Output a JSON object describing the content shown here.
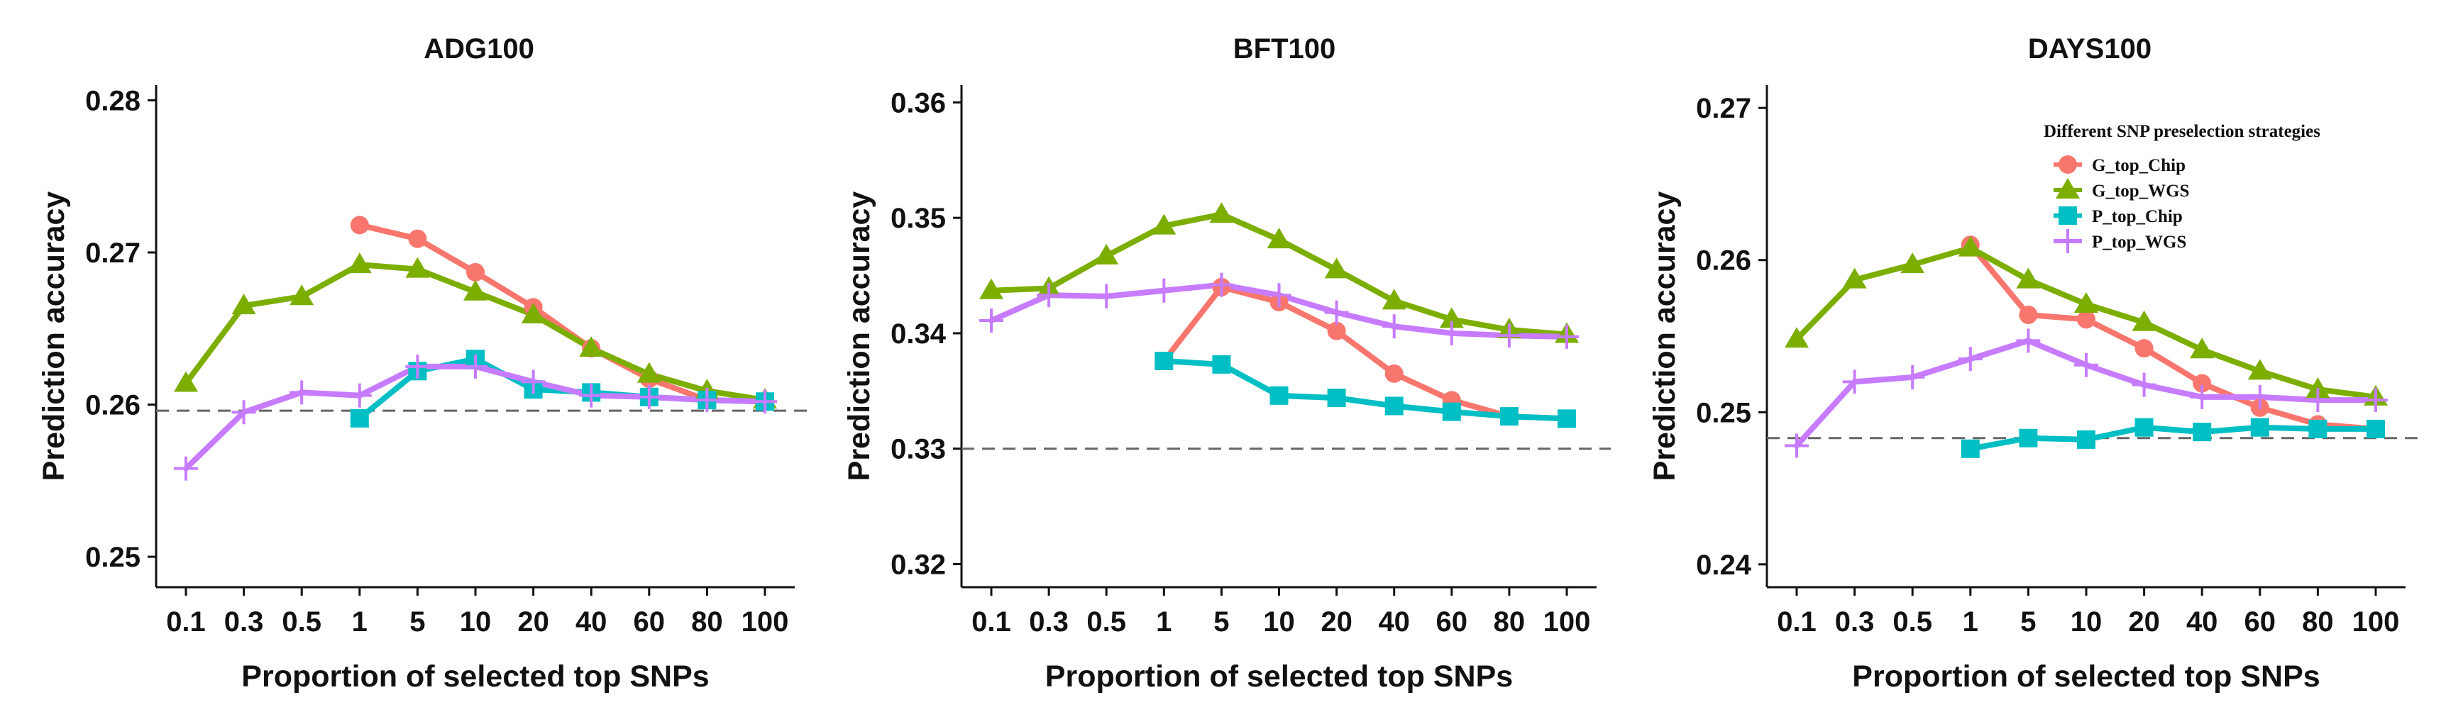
{
  "chart_data": [
    {
      "type": "line",
      "title": "ADG100",
      "xlabel": "Proportion of selected top SNPs",
      "ylabel": "Prediction accuracy",
      "categories": [
        "0.1",
        "0.3",
        "0.5",
        "1",
        "5",
        "10",
        "20",
        "40",
        "60",
        "80",
        "100"
      ],
      "ylim": [
        0.248,
        0.281
      ],
      "yticks": [
        0.25,
        0.26,
        0.27,
        0.28
      ],
      "ytick_labels": [
        "0.25",
        "0.26",
        "0.27",
        "0.28"
      ],
      "baseline": 0.2596,
      "series": [
        {
          "name": "G_top_Chip",
          "values": [
            null,
            null,
            null,
            0.2718,
            0.2709,
            0.2687,
            0.2664,
            0.2637,
            0.2617,
            0.2603,
            0.2602
          ]
        },
        {
          "name": "G_top_WGS",
          "values": [
            0.2614,
            0.2665,
            0.2671,
            0.2692,
            0.2689,
            0.2674,
            0.2659,
            0.2637,
            0.262,
            0.2609,
            0.2603
          ]
        },
        {
          "name": "P_top_Chip",
          "values": [
            null,
            null,
            null,
            0.2591,
            0.2622,
            0.263,
            0.261,
            0.2608,
            0.2605,
            0.2603,
            0.2602
          ]
        },
        {
          "name": "P_top_WGS",
          "values": [
            0.2558,
            0.2595,
            0.2608,
            0.2606,
            0.2625,
            0.2625,
            0.2615,
            0.2606,
            0.2605,
            0.2603,
            0.2602
          ]
        }
      ]
    },
    {
      "type": "line",
      "title": "BFT100",
      "xlabel": "Proportion of selected top SNPs",
      "ylabel": "Prediction accuracy",
      "categories": [
        "0.1",
        "0.3",
        "0.5",
        "1",
        "5",
        "10",
        "20",
        "40",
        "60",
        "80",
        "100"
      ],
      "ylim": [
        0.318,
        0.3615
      ],
      "yticks": [
        0.32,
        0.33,
        0.34,
        0.35,
        0.36
      ],
      "ytick_labels": [
        "0.32",
        "0.33",
        "0.34",
        "0.35",
        "0.36"
      ],
      "baseline": 0.33,
      "series": [
        {
          "name": "G_top_Chip",
          "values": [
            null,
            null,
            null,
            0.3376,
            0.344,
            0.3427,
            0.3402,
            0.3365,
            0.3342,
            0.3328,
            0.3326
          ]
        },
        {
          "name": "G_top_WGS",
          "values": [
            0.3437,
            0.3439,
            0.3467,
            0.3493,
            0.3503,
            0.3481,
            0.3455,
            0.3428,
            0.3412,
            0.3403,
            0.3399
          ]
        },
        {
          "name": "P_top_Chip",
          "values": [
            null,
            null,
            null,
            0.3376,
            0.3373,
            0.3346,
            0.3344,
            0.3337,
            0.3332,
            0.3328,
            0.3326
          ]
        },
        {
          "name": "P_top_WGS",
          "values": [
            0.3411,
            0.3433,
            0.3432,
            0.3437,
            0.3442,
            0.3433,
            0.3418,
            0.3406,
            0.34,
            0.3398,
            0.3397
          ]
        }
      ]
    },
    {
      "type": "line",
      "title": "DAYS100",
      "xlabel": "Proportion of selected top SNPs",
      "ylabel": "Prediction accuracy",
      "categories": [
        "0.1",
        "0.3",
        "0.5",
        "1",
        "5",
        "10",
        "20",
        "40",
        "60",
        "80",
        "100"
      ],
      "ylim": [
        0.2385,
        0.2715
      ],
      "yticks": [
        0.24,
        0.25,
        0.26,
        0.27
      ],
      "ytick_labels": [
        "0.24",
        "0.25",
        "0.26",
        "0.27"
      ],
      "baseline": 0.2483,
      "legend": {
        "title": "Different SNP preselection strategies",
        "position": "top-right"
      },
      "series": [
        {
          "name": "G_top_Chip",
          "values": [
            null,
            null,
            null,
            0.261,
            0.2564,
            0.2561,
            0.2542,
            0.2519,
            0.2503,
            0.2492,
            0.2489
          ]
        },
        {
          "name": "G_top_WGS",
          "values": [
            0.2548,
            0.2587,
            0.2597,
            0.2608,
            0.2587,
            0.2571,
            0.2559,
            0.2541,
            0.2527,
            0.2515,
            0.251
          ]
        },
        {
          "name": "P_top_Chip",
          "values": [
            null,
            null,
            null,
            0.2476,
            0.2483,
            0.2482,
            0.249,
            0.2487,
            0.249,
            0.2489,
            0.2489
          ]
        },
        {
          "name": "P_top_WGS",
          "values": [
            0.2478,
            0.252,
            0.2523,
            0.2535,
            0.2547,
            0.2531,
            0.2518,
            0.251,
            0.251,
            0.2508,
            0.2508
          ]
        }
      ]
    }
  ],
  "styles": {
    "G_top_Chip": {
      "color": "#F8766D",
      "marker": "circle"
    },
    "G_top_WGS": {
      "color": "#7CAE00",
      "marker": "triangle"
    },
    "P_top_Chip": {
      "color": "#00BFC4",
      "marker": "square"
    },
    "P_top_WGS": {
      "color": "#C77CFF",
      "marker": "plus"
    },
    "baseline_color": "#666666"
  }
}
